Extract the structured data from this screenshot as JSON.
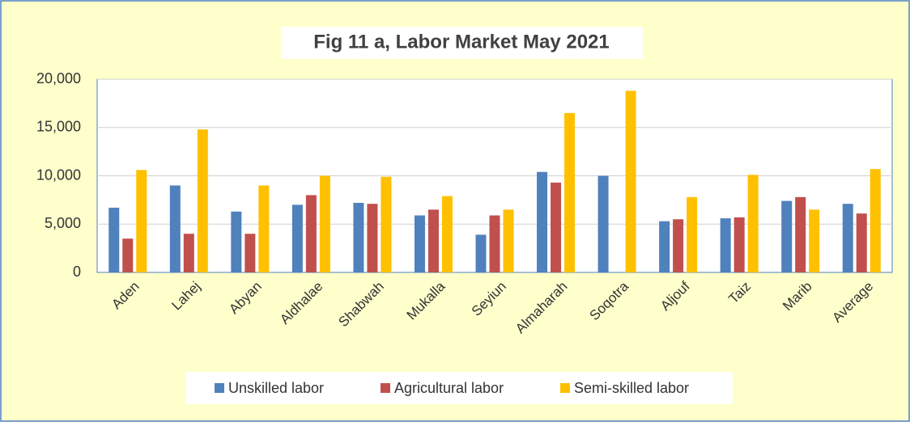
{
  "chart_data": {
    "type": "bar",
    "title": "Fig 11 a, Labor Market May 2021",
    "categories": [
      "Aden",
      "Lahej",
      "Abyan",
      "Aldhalae",
      "Shabwah",
      "Mukalla",
      "Seyiun",
      "Almaharah",
      "Soqotra",
      "Aljouf",
      "Taiz",
      "Marib",
      "Average"
    ],
    "series": [
      {
        "name": "Unskilled labor",
        "color": "#4f81bd",
        "values": [
          6700,
          9000,
          6300,
          7000,
          7200,
          5900,
          3900,
          10400,
          10000,
          5300,
          5600,
          7400,
          7100
        ]
      },
      {
        "name": "Agricultural labor",
        "color": "#c0504d",
        "values": [
          3500,
          4000,
          4000,
          8000,
          7100,
          6500,
          5900,
          9300,
          null,
          5500,
          5700,
          7800,
          6100
        ]
      },
      {
        "name": "Semi-skilled labor",
        "color": "#ffc000",
        "values": [
          10600,
          14800,
          9000,
          10000,
          9900,
          7900,
          6500,
          16500,
          18800,
          7800,
          10100,
          6500,
          10700
        ]
      }
    ],
    "ylim": [
      0,
      20000
    ],
    "yticks": [
      0,
      {
        "value": 5000,
        "label": "5,000"
      },
      {
        "value": 10000,
        "label": "10,000"
      },
      {
        "value": 15000,
        "label": "15,000"
      },
      {
        "value": 20000,
        "label": "20,000"
      }
    ],
    "grid": true,
    "legend": "bottom"
  }
}
